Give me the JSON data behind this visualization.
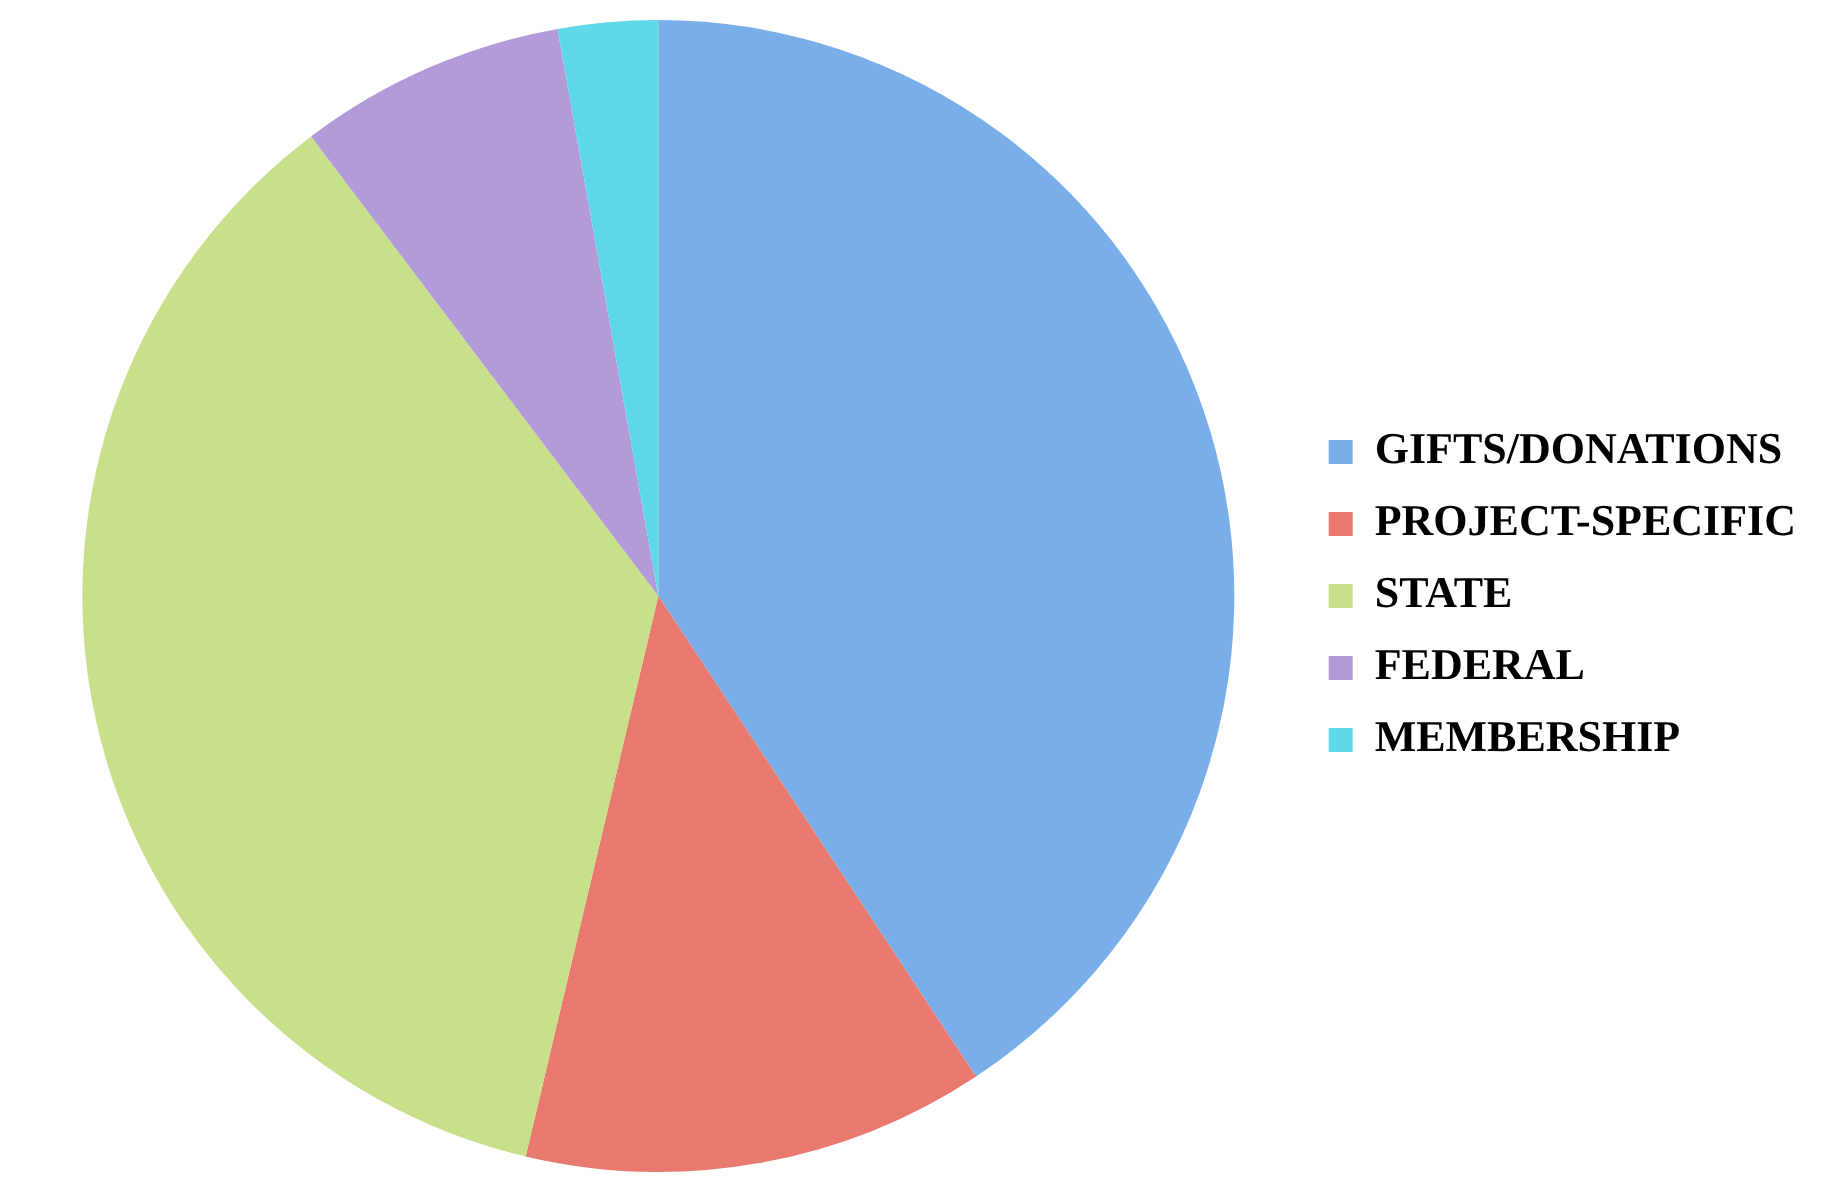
{
  "chart_data": {
    "type": "pie",
    "categories": [
      "GIFTS/DONATIONS",
      "PROJECT-SPECIFIC",
      "STATE",
      "FEDERAL",
      "MEMBERSHIP"
    ],
    "values": [
      40.7,
      13,
      36,
      7.5,
      2.8
    ],
    "colors": [
      "#7aaee8",
      "#e8796f",
      "#c8e08a",
      "#b39ad8",
      "#5fd8ea"
    ],
    "legend": "right"
  }
}
